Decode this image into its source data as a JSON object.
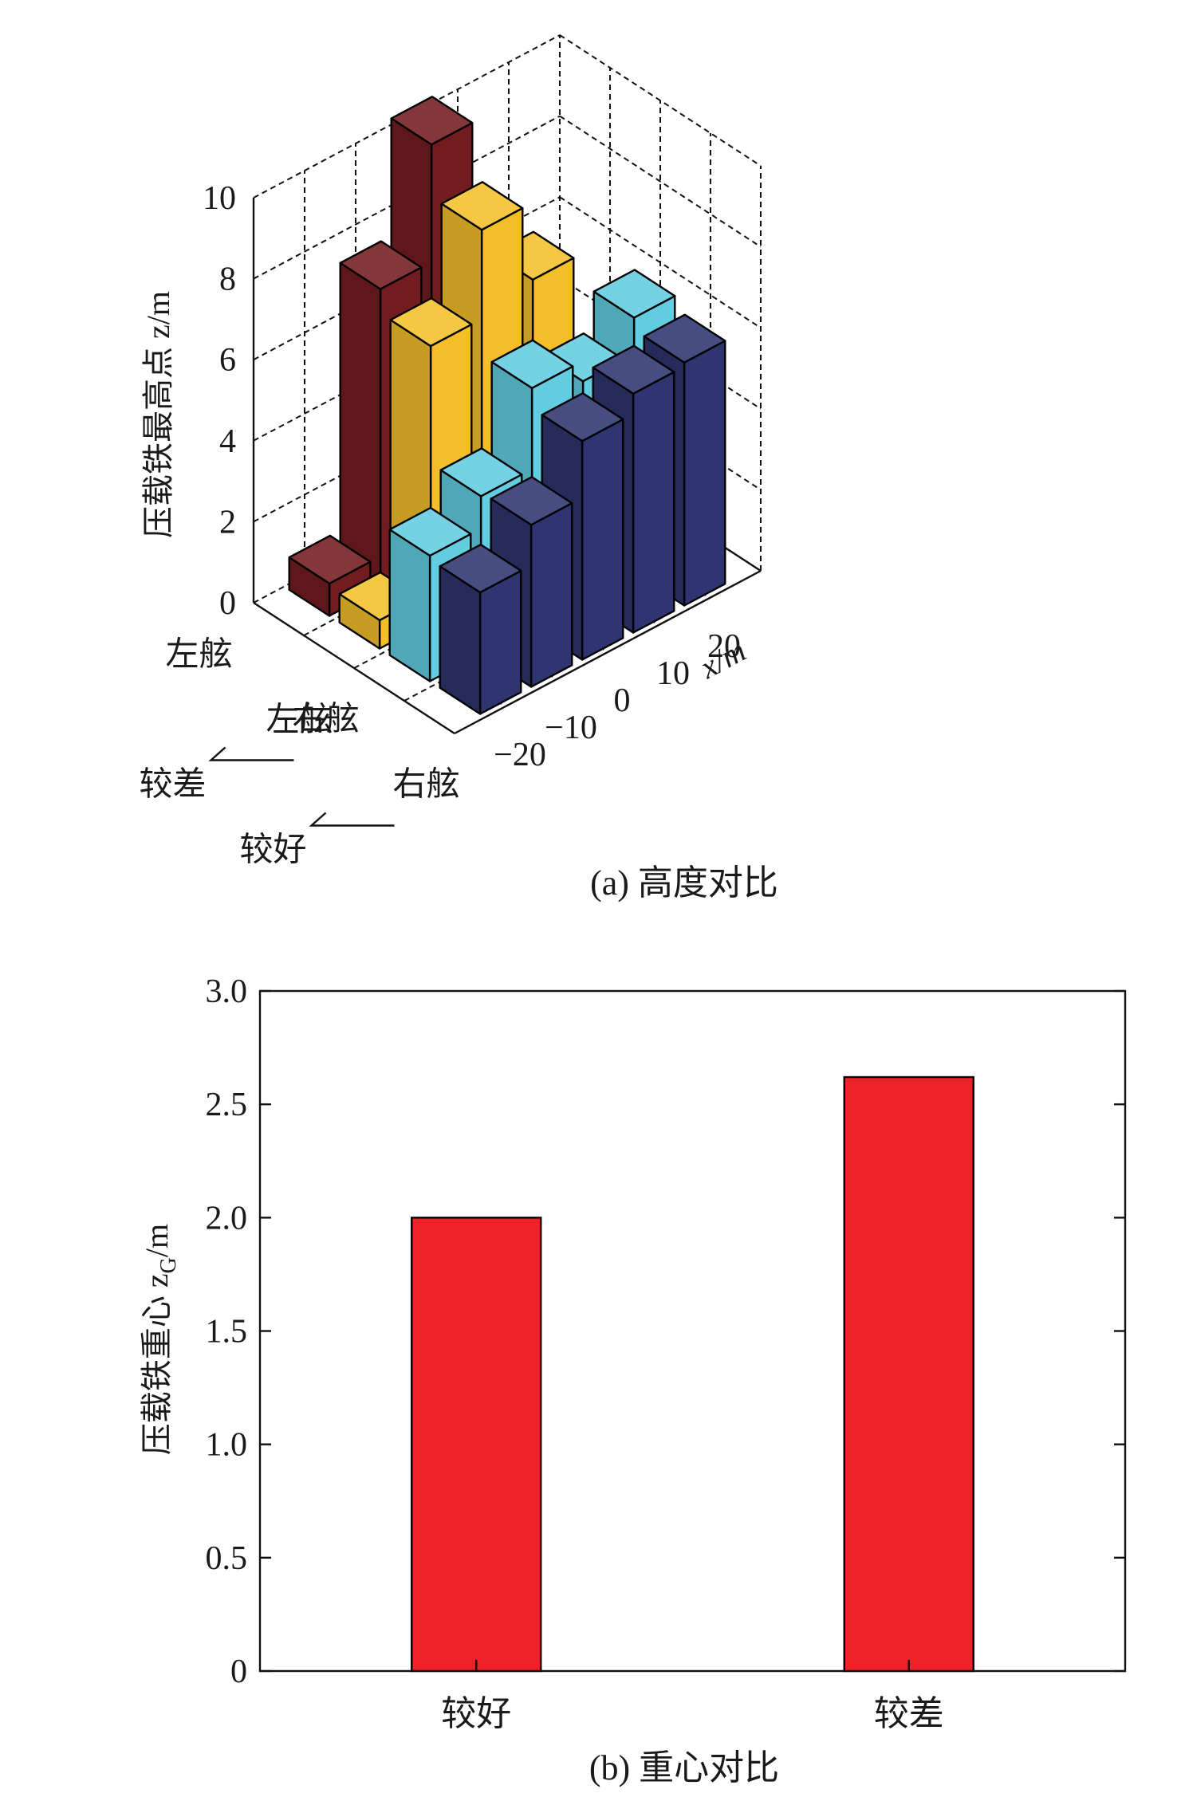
{
  "chart_data": [
    {
      "type": "bar3d",
      "caption": "(a) 高度对比",
      "zlabel": "压载铁最高点 z/m",
      "xlabel": "x/m",
      "zlim": [
        0,
        10
      ],
      "z_ticks": [
        "0",
        "2",
        "4",
        "6",
        "8",
        "10"
      ],
      "x_ticks": [
        "−20",
        "−10",
        "0",
        "10",
        "20"
      ],
      "x_values": [
        -20,
        -10,
        0,
        10,
        20
      ],
      "row_labels": [
        {
          "side": "左舷",
          "group": "较差"
        },
        {
          "side": "右舷",
          "group": ""
        },
        {
          "side": "左舷",
          "group": "较好"
        },
        {
          "side": "右舷",
          "group": ""
        }
      ],
      "group_labels": [
        "较差",
        "较好"
      ],
      "series": [
        {
          "color": "#731c20",
          "values": [
            0.8,
            7.4,
            10.3,
            null,
            null
          ]
        },
        {
          "color": "#f2bf2a",
          "values": [
            0.7,
            6.8,
            9.0,
            7.1,
            null
          ]
        },
        {
          "color": "#62cce0",
          "values": [
            3.1,
            3.9,
            5.9,
            5.4,
            6.3
          ]
        },
        {
          "color": "#2e3570",
          "values": [
            3.0,
            4.0,
            5.4,
            5.9,
            6.0
          ]
        }
      ]
    },
    {
      "type": "bar",
      "caption": "(b) 重心对比",
      "ylabel_main": "压载铁重心 z",
      "ylabel_sub": "G",
      "ylabel_unit": "/m",
      "categories": [
        "较好",
        "较差"
      ],
      "values": [
        2.0,
        2.62
      ],
      "ylim": [
        0,
        3
      ],
      "y_ticks": [
        "0",
        "0.5",
        "1.0",
        "1.5",
        "2.0",
        "2.5",
        "3.0"
      ],
      "bar_color": "#ee2229"
    }
  ]
}
